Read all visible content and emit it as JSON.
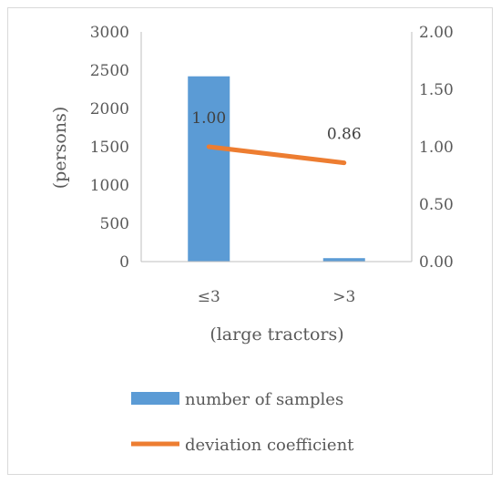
{
  "chart_data": {
    "type": "bar",
    "categories": [
      "≤3",
      ">3"
    ],
    "xlabel": "(large tractors)",
    "ylabel": "(persons)",
    "ylim": [
      0,
      3000
    ],
    "y_ticks": [
      "0",
      "500",
      "1000",
      "1500",
      "2000",
      "2500",
      "3000"
    ],
    "y2lim": [
      0,
      2
    ],
    "y2_ticks": [
      "0.00",
      "0.50",
      "1.00",
      "1.50",
      "2.00"
    ],
    "grid": false,
    "legend_position": "bottom",
    "series": [
      {
        "name": "number of samples",
        "type": "bar",
        "axis": "left",
        "values": [
          2420,
          45
        ],
        "color": "#5b9bd5"
      },
      {
        "name": "deviation coefficient",
        "type": "line",
        "axis": "right",
        "values": [
          1.0,
          0.86
        ],
        "labels": [
          "1.00",
          "0.86"
        ],
        "color": "#ed7d31"
      }
    ]
  }
}
